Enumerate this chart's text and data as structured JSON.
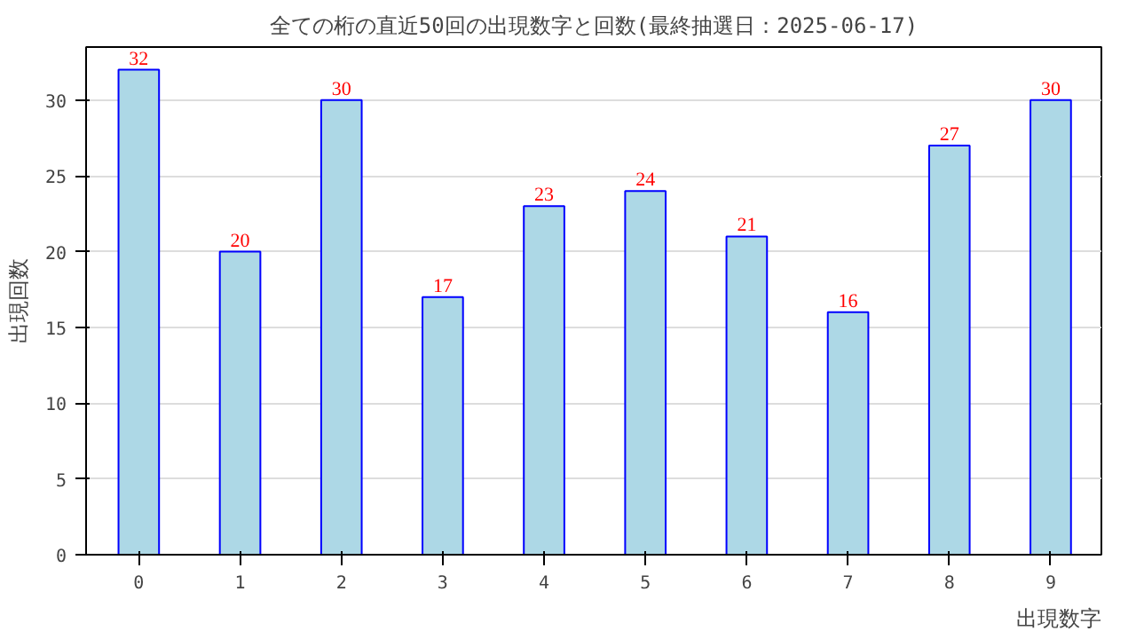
{
  "chart_data": {
    "type": "bar",
    "title": "全ての桁の直近50回の出現数字と回数(最終抽選日：2025-06-17)",
    "xlabel": "出現数字",
    "ylabel": "出現回数",
    "categories": [
      "0",
      "1",
      "2",
      "3",
      "4",
      "5",
      "6",
      "7",
      "8",
      "9"
    ],
    "values": [
      32,
      20,
      30,
      17,
      23,
      24,
      21,
      16,
      27,
      30
    ],
    "color": "#add8e6",
    "ylim": [
      0,
      33.5
    ],
    "yticks": [
      0,
      5,
      10,
      15,
      20,
      25,
      30
    ],
    "grid": "y",
    "data_labels": true
  }
}
